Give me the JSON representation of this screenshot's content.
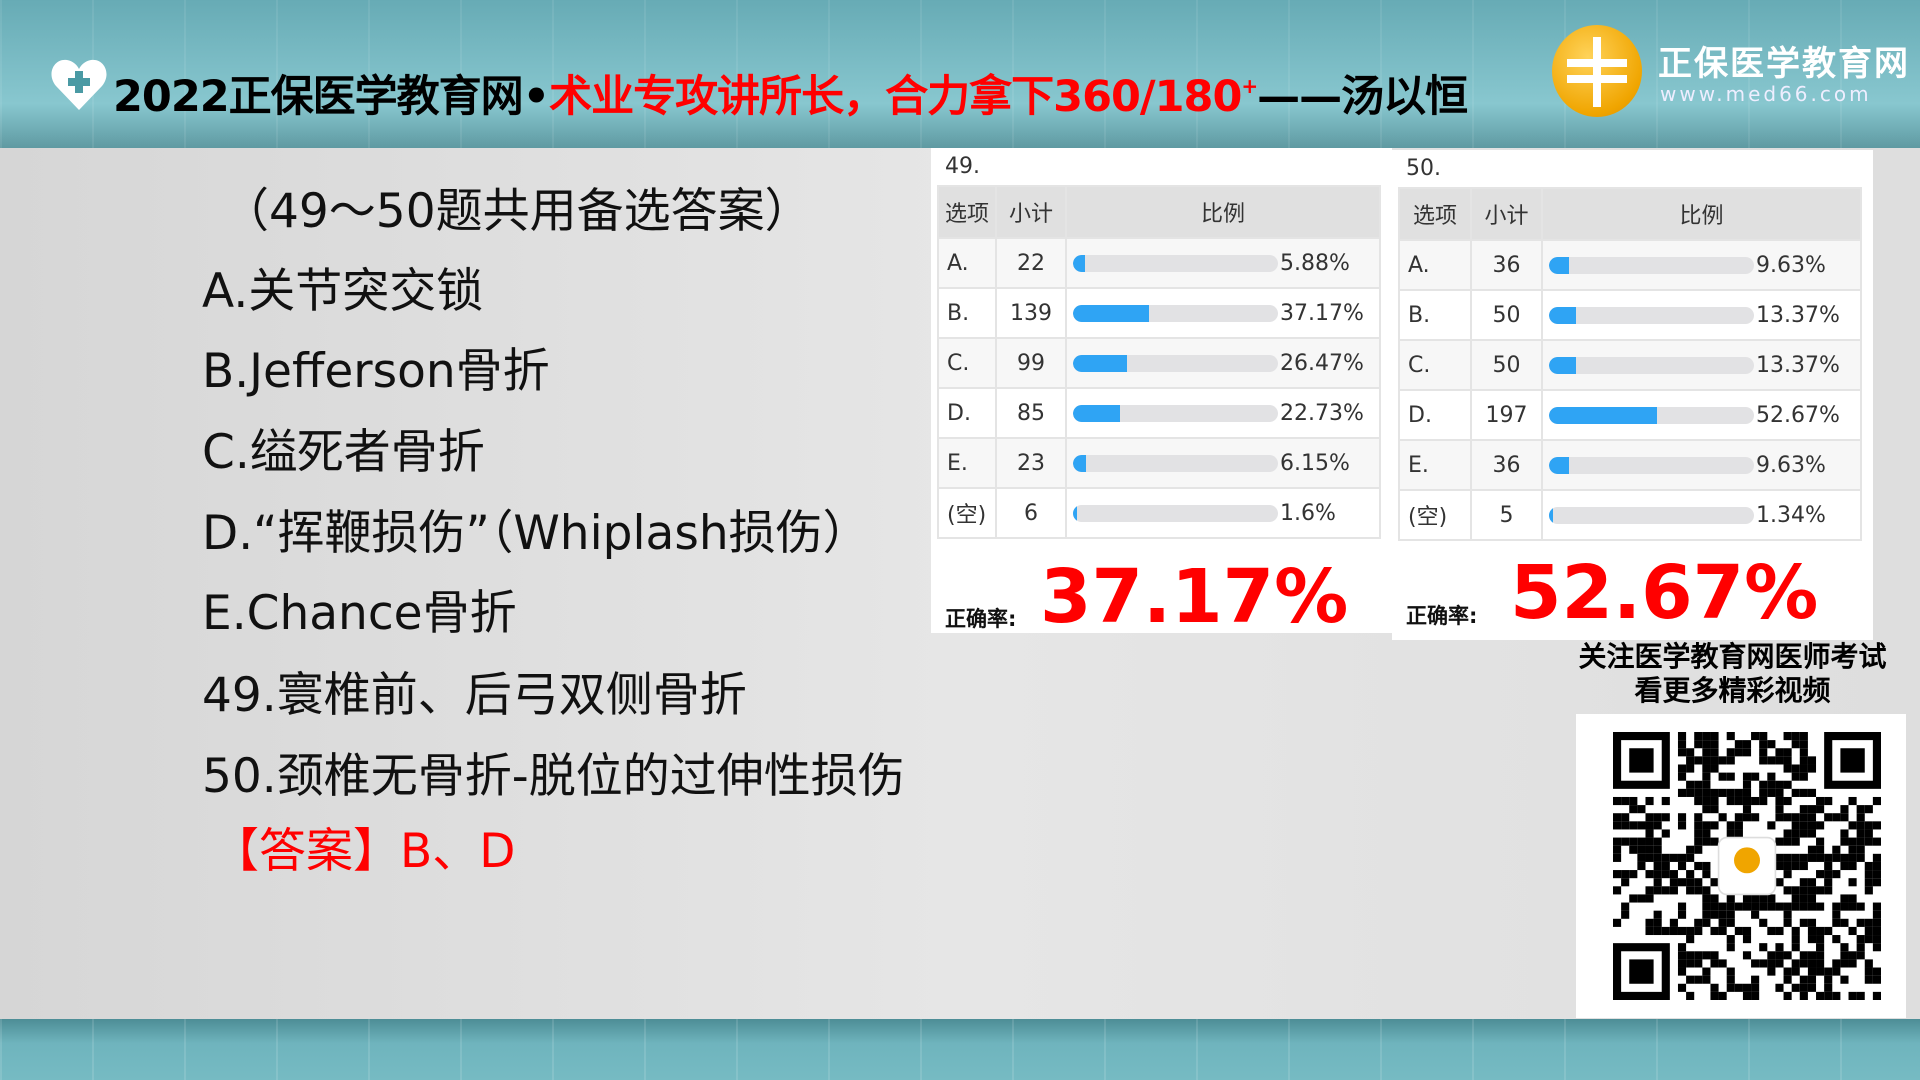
{
  "header": {
    "title_black": "2022正保医学教育网•",
    "title_red": "术业专攻讲所长，合力拿下360/180",
    "title_sup": "+",
    "title_tail": "——汤以恒",
    "brand": "正保医学教育网",
    "url": "www.med66.com"
  },
  "question": {
    "lines": [
      "（49～50题共用备选答案）",
      "A.关节突交锁",
      "B.Jefferson骨折",
      "C.缢死者骨折",
      "D.“挥鞭损伤”（Whiplash损伤）",
      "E.Chance骨折",
      "49.寰椎前、后弓双侧骨折",
      "50.颈椎无骨折-脱位的过伸性损伤"
    ],
    "answer": "【答案】B、D"
  },
  "headers": [
    "选项",
    "小计",
    "比例"
  ],
  "rate_label": "正确率:",
  "stats": [
    {
      "no": "49.",
      "rate": "37.17%",
      "rows": [
        [
          "A.",
          "22",
          "5.88%",
          5.88
        ],
        [
          "B.",
          "139",
          "37.17%",
          37.17
        ],
        [
          "C.",
          "99",
          "26.47%",
          26.47
        ],
        [
          "D.",
          "85",
          "22.73%",
          22.73
        ],
        [
          "E.",
          "23",
          "6.15%",
          6.15
        ],
        [
          "(空)",
          "6",
          "1.6%",
          1.6
        ]
      ]
    },
    {
      "no": "50.",
      "rate": "52.67%",
      "rows": [
        [
          "A.",
          "36",
          "9.63%",
          9.63
        ],
        [
          "B.",
          "50",
          "13.37%",
          13.37
        ],
        [
          "C.",
          "50",
          "13.37%",
          13.37
        ],
        [
          "D.",
          "197",
          "52.67%",
          52.67
        ],
        [
          "E.",
          "36",
          "9.63%",
          9.63
        ],
        [
          "(空)",
          "5",
          "1.34%",
          1.34
        ]
      ]
    }
  ],
  "follow": [
    "关注医学教育网医师考试",
    "看更多精彩视频"
  ],
  "colors": {
    "accent": "#2fa4f4",
    "red": "#ff0000"
  }
}
